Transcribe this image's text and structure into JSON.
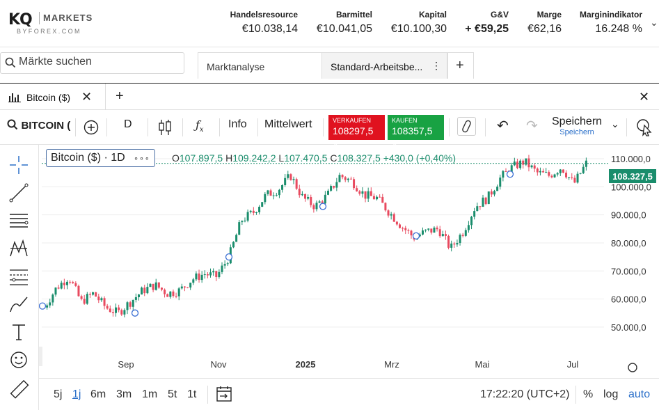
{
  "header": {
    "logo": {
      "brand": "KQ",
      "markets": "MARKETS",
      "sub": "BYFOREX.COM"
    },
    "stats": [
      {
        "label": "Handelsresource",
        "value": "€10.038,14"
      },
      {
        "label": "Barmittel",
        "value": "€10.041,05"
      },
      {
        "label": "Kapital",
        "value": "€10.100,30"
      },
      {
        "label": "G&V",
        "value": "+ €59,25"
      },
      {
        "label": "Marge",
        "value": "€62,16"
      },
      {
        "label": "Marginindikator",
        "value": "16.248 %"
      }
    ]
  },
  "search": {
    "placeholder": "Märkte suchen"
  },
  "workspace_tabs": [
    {
      "label": "Marktanalyse"
    },
    {
      "label": "Standard-Arbeitsbe..."
    },
    {
      "label": "+"
    }
  ],
  "chart_tab": {
    "label": "Bitcoin ($)"
  },
  "toolbar": {
    "symbol": "BITCOIN (",
    "interval": "D",
    "info": "Info",
    "average": "Mittelwert",
    "sell": {
      "label": "VERKAUFEN",
      "price": "108297,5"
    },
    "buy": {
      "label": "KAUFEN",
      "price": "108357,5"
    },
    "save": "Speichern",
    "save_sub": "Speichern",
    "colors": {
      "sell": "#e0121f",
      "buy": "#18a243"
    }
  },
  "legend": {
    "title": "Bitcoin ($) · 1D",
    "more": "∘∘∘",
    "o_label": "O",
    "o": "107.897,5",
    "h_label": "H",
    "h": "109.242,2",
    "l_label": "L",
    "l": "107.470,5",
    "c_label": "C",
    "c": "108.327,5",
    "change": "+430,0 (+0,40%)"
  },
  "last_price": "108.327,5",
  "bottom": {
    "ranges": [
      "5j",
      "1j",
      "6m",
      "3m",
      "1m",
      "5t",
      "1t"
    ],
    "active_range": "1j",
    "time": "17:22:20 (UTC+2)",
    "percent": "%",
    "log": "log",
    "auto": "auto"
  },
  "chart_data": {
    "type": "candlestick",
    "title": "Bitcoin ($) · 1D",
    "y_axis_ticks": [
      "50.000,0",
      "60.000,0",
      "70.000,0",
      "80.000,0",
      "90.000,0",
      "100.000,0",
      "110.000,0"
    ],
    "x_axis_ticks": [
      "Sep",
      "Nov",
      "2025",
      "Mrz",
      "Mai",
      "Jul"
    ],
    "ylim": [
      45000,
      112000
    ],
    "colors": {
      "up": "#1a8d6c",
      "down": "#e84a5f",
      "grid": "#eeeeee"
    },
    "series": [
      {
        "x": "Aug 2024",
        "close": 57000
      },
      {
        "x": "Aug 2024",
        "close": 64000
      },
      {
        "x": "Aug 2024",
        "close": 68000
      },
      {
        "x": "Aug 2024",
        "close": 59000
      },
      {
        "x": "Aug 2024",
        "close": 62000
      },
      {
        "x": "Sep 2024",
        "close": 57000
      },
      {
        "x": "Sep 2024",
        "close": 55000
      },
      {
        "x": "Sep 2024",
        "close": 59000
      },
      {
        "x": "Sep 2024",
        "close": 63000
      },
      {
        "x": "Sep 2024",
        "close": 65000
      },
      {
        "x": "Okt 2024",
        "close": 62000
      },
      {
        "x": "Okt 2024",
        "close": 63000
      },
      {
        "x": "Okt 2024",
        "close": 67000
      },
      {
        "x": "Okt 2024",
        "close": 69000
      },
      {
        "x": "Okt 2024",
        "close": 68000
      },
      {
        "x": "Nov 2024",
        "close": 75000
      },
      {
        "x": "Nov 2024",
        "close": 88000
      },
      {
        "x": "Nov 2024",
        "close": 91000
      },
      {
        "x": "Nov 2024",
        "close": 97000
      },
      {
        "x": "Dez 2024",
        "close": 99000
      },
      {
        "x": "Dez 2024",
        "close": 104000
      },
      {
        "x": "Dez 2024",
        "close": 96000
      },
      {
        "x": "Dez 2024",
        "close": 93000
      },
      {
        "x": "2025",
        "close": 97000
      },
      {
        "x": "Jan 2025",
        "close": 104000
      },
      {
        "x": "Jan 2025",
        "close": 102000
      },
      {
        "x": "Feb 2025",
        "close": 97000
      },
      {
        "x": "Feb 2025",
        "close": 96000
      },
      {
        "x": "Feb 2025",
        "close": 91000
      },
      {
        "x": "Mrz 2025",
        "close": 86000
      },
      {
        "x": "Mrz 2025",
        "close": 82000
      },
      {
        "x": "Mrz 2025",
        "close": 84000
      },
      {
        "x": "Apr 2025",
        "close": 85000
      },
      {
        "x": "Apr 2025",
        "close": 78000
      },
      {
        "x": "Apr 2025",
        "close": 84000
      },
      {
        "x": "Apr 2025",
        "close": 93000
      },
      {
        "x": "Mai 2025",
        "close": 96000
      },
      {
        "x": "Mai 2025",
        "close": 103000
      },
      {
        "x": "Mai 2025",
        "close": 107000
      },
      {
        "x": "Mai 2025",
        "close": 109000
      },
      {
        "x": "Jun 2025",
        "close": 105000
      },
      {
        "x": "Jun 2025",
        "close": 104000
      },
      {
        "x": "Jun 2025",
        "close": 107000
      },
      {
        "x": "Jun 2025",
        "close": 101000
      },
      {
        "x": "Jul 2025",
        "close": 108327.5
      }
    ],
    "last_price": 108327.5
  }
}
